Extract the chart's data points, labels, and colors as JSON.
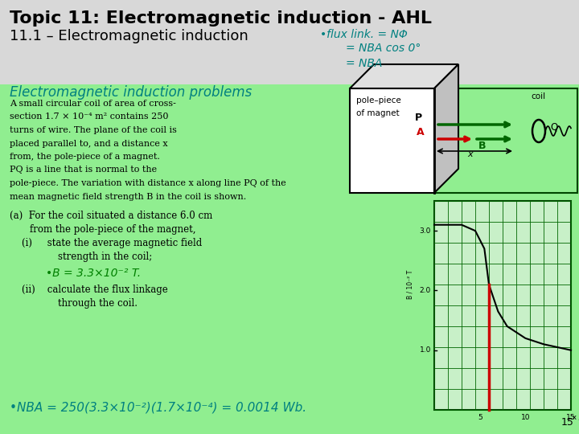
{
  "title_line1": "Topic 11: Electromagnetic induction - AHL",
  "title_line2": "11.1 – Electromagnetic induction",
  "title_color": "#000000",
  "subtitle_italic": "Electromagnetic induction problems",
  "subtitle_color": "#008080",
  "bg_color": "#90EE90",
  "header_bg": "#d8d8d8",
  "flux_text": "•flux link. = NΦ",
  "flux_line2": "= NBA cos 0°",
  "flux_line3": "= NBA",
  "flux_color": "#008080",
  "bullet_B_color": "#008000",
  "bullet_NBA_color": "#008080",
  "green_box_color": "#90EE90",
  "slide_number": "15"
}
